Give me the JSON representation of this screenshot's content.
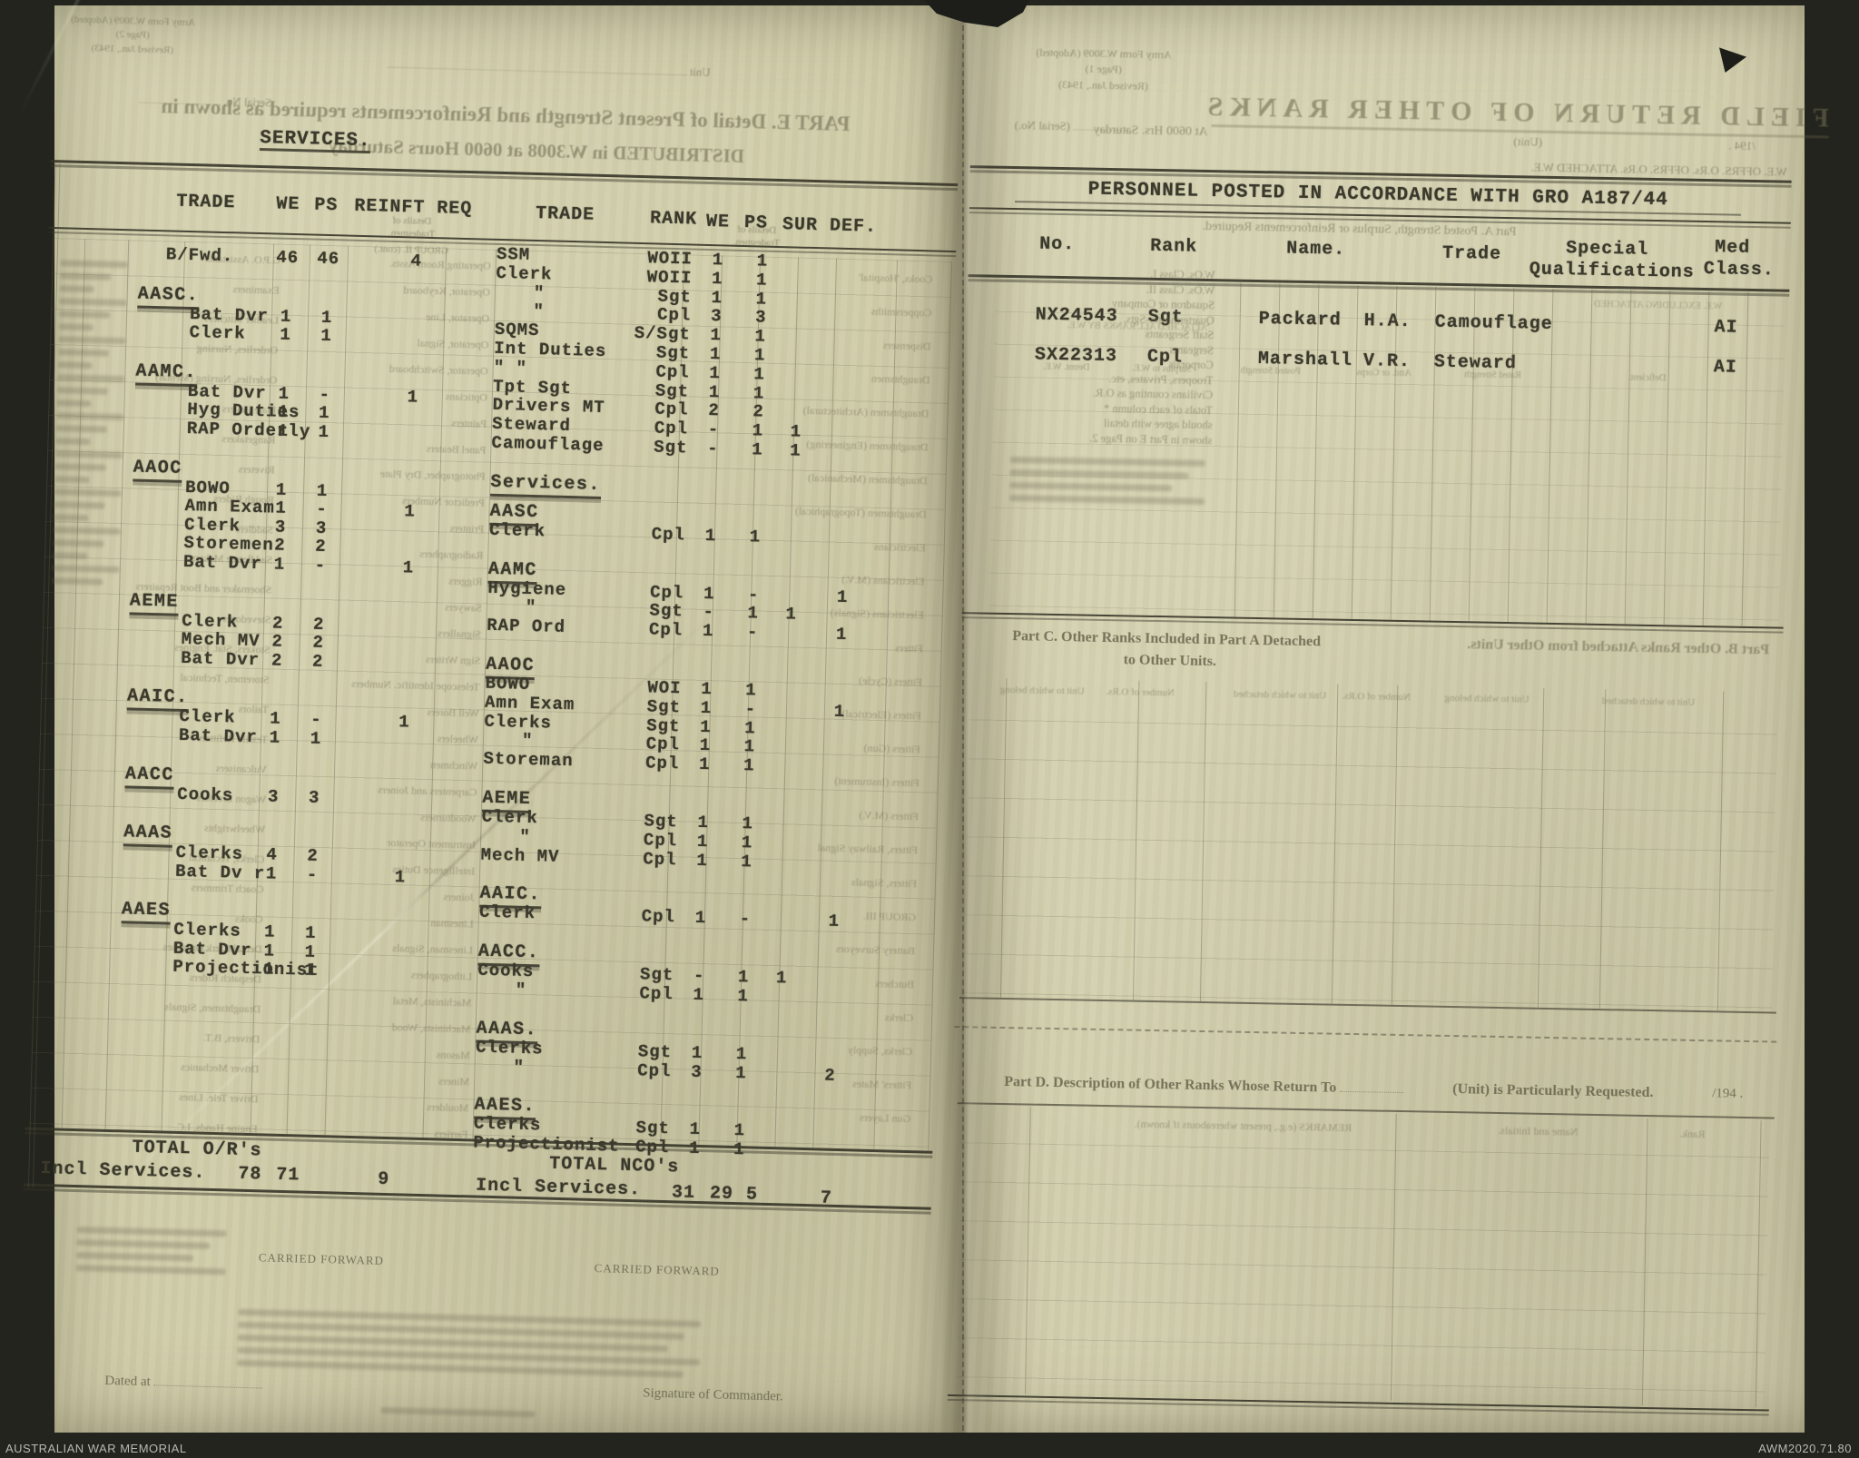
{
  "archive": {
    "memorial": "AUSTRALIAN WAR MEMORIAL",
    "accession": "AWM2020.71.80"
  },
  "left_page": {
    "typed": {
      "services_heading": "SERVICES.",
      "headers": {
        "trade": "TRADE",
        "we": "WE",
        "ps": "PS",
        "reinf": "REINFT REQ",
        "trade2": "TRADE",
        "rank": "RANK",
        "we2": "WE",
        "ps2": "PS",
        "surdef": "SUR DEF."
      },
      "or_return": {
        "bfwd": {
          "trade": "B/Fwd.",
          "we": "46",
          "ps": "46",
          "reinf": "4"
        },
        "groups": [
          {
            "corps": "AASC.",
            "rows": [
              {
                "trade": "Bat Dvr",
                "we": "1",
                "ps": "1"
              },
              {
                "trade": "Clerk",
                "we": "1",
                "ps": "1"
              }
            ]
          },
          {
            "corps": "AAMC.",
            "rows": [
              {
                "trade": "Bat Dvr",
                "we": "1",
                "ps": "-",
                "reinf": "1"
              },
              {
                "trade": "Hyg Duties",
                "we": "1",
                "ps": "1"
              },
              {
                "trade": "RAP Orderly",
                "we": "1",
                "ps": "1"
              }
            ]
          },
          {
            "corps": "AAOC",
            "rows": [
              {
                "trade": "BOWO",
                "we": "1",
                "ps": "1"
              },
              {
                "trade": "Amn Exam",
                "we": "1",
                "ps": "-",
                "reinf": "1"
              },
              {
                "trade": "Clerk",
                "we": "3",
                "ps": "3"
              },
              {
                "trade": "Storemen",
                "we": "2",
                "ps": "2"
              },
              {
                "trade": "Bat Dvr",
                "we": "1",
                "ps": "-",
                "reinf": "1"
              }
            ]
          },
          {
            "corps": "AEME",
            "rows": [
              {
                "trade": "Clerk",
                "we": "2",
                "ps": "2"
              },
              {
                "trade": "Mech MV",
                "we": "2",
                "ps": "2"
              },
              {
                "trade": "Bat Dvr",
                "we": "2",
                "ps": "2"
              }
            ]
          },
          {
            "corps": "AAIC.",
            "rows": [
              {
                "trade": "Clerk",
                "we": "1",
                "ps": "-",
                "reinf": "1"
              },
              {
                "trade": "Bat Dvr",
                "we": "1",
                "ps": "1"
              }
            ]
          },
          {
            "corps": "AACC",
            "rows": [
              {
                "trade": "Cooks",
                "we": "3",
                "ps": "3"
              }
            ]
          },
          {
            "corps": "AAAS",
            "rows": [
              {
                "trade": "Clerks",
                "we": "4",
                "ps": "2"
              },
              {
                "trade": "Bat Dv r",
                "we": "1",
                "ps": "-",
                "reinf": "1"
              }
            ]
          },
          {
            "corps": "AAES",
            "rows": [
              {
                "trade": "Clerks",
                "we": "1",
                "ps": "1"
              },
              {
                "trade": "Bat Dvr",
                "we": "1",
                "ps": "1"
              },
              {
                "trade": "Projectionist",
                "we": "1",
                "ps": "1"
              }
            ]
          }
        ],
        "total": {
          "line1": "TOTAL O/R's",
          "line2": "Incl Services.",
          "we": "78",
          "ps": "71",
          "reinf": "9"
        }
      },
      "nco_return": {
        "lead_rows": [
          {
            "trade": "SSM",
            "rank": "WOII",
            "we": "1",
            "ps": "1"
          },
          {
            "trade": "Clerk",
            "rank": "WOII",
            "we": "1",
            "ps": "1"
          },
          {
            "trade": "\"",
            "rank": "Sgt",
            "we": "1",
            "ps": "1"
          },
          {
            "trade": "\"",
            "rank": "Cpl",
            "we": "3",
            "ps": "3"
          },
          {
            "trade": "SQMS",
            "rank": "S/Sgt",
            "we": "1",
            "ps": "1"
          },
          {
            "trade": "Int Duties",
            "rank": "Sgt",
            "we": "1",
            "ps": "1"
          },
          {
            "trade": "\"  \"",
            "rank": "Cpl",
            "we": "1",
            "ps": "1"
          },
          {
            "trade": "Tpt Sgt",
            "rank": "Sgt",
            "we": "1",
            "ps": "1"
          },
          {
            "trade": "Drivers MT",
            "rank": "Cpl",
            "we": "2",
            "ps": "2"
          },
          {
            "trade": "Steward",
            "rank": "Cpl",
            "we": "-",
            "ps": "1",
            "sur": "1"
          },
          {
            "trade": "Camouflage",
            "rank": "Sgt",
            "we": "-",
            "ps": "1",
            "sur": "1"
          }
        ],
        "services_heading": "Services.",
        "groups": [
          {
            "corps": "AASC",
            "rows": [
              {
                "trade": "Clerk",
                "rank": "Cpl",
                "we": "1",
                "ps": "1"
              }
            ]
          },
          {
            "corps": "AAMC",
            "rows": [
              {
                "trade": "Hygiene",
                "rank": "Cpl",
                "we": "1",
                "ps": "-",
                "def": "1"
              },
              {
                "trade": "\"",
                "rank": "Sgt",
                "we": "-",
                "ps": "1",
                "sur": "1"
              },
              {
                "trade": "RAP Ord",
                "rank": "Cpl",
                "we": "1",
                "ps": "-",
                "def": "1"
              }
            ]
          },
          {
            "corps": "AAOC",
            "rows": [
              {
                "trade": "BOWO",
                "rank": "WOI",
                "we": "1",
                "ps": "1"
              },
              {
                "trade": "Amn Exam",
                "rank": "Sgt",
                "we": "1",
                "ps": "-",
                "def": "1"
              },
              {
                "trade": "Clerks",
                "rank": "Sgt",
                "we": "1",
                "ps": "1"
              },
              {
                "trade": "\"",
                "rank": "Cpl",
                "we": "1",
                "ps": "1"
              },
              {
                "trade": "Storeman",
                "rank": "Cpl",
                "we": "1",
                "ps": "1"
              }
            ]
          },
          {
            "corps": "AEME",
            "rows": [
              {
                "trade": "Clerk",
                "rank": "Sgt",
                "we": "1",
                "ps": "1"
              },
              {
                "trade": "\"",
                "rank": "Cpl",
                "we": "1",
                "ps": "1"
              },
              {
                "trade": "Mech MV",
                "rank": "Cpl",
                "we": "1",
                "ps": "1"
              }
            ]
          },
          {
            "corps": "AAIC.",
            "rows": [
              {
                "trade": "Clerk",
                "rank": "Cpl",
                "we": "1",
                "ps": "-",
                "def": "1"
              }
            ]
          },
          {
            "corps": "AACC.",
            "rows": [
              {
                "trade": "Cooks",
                "rank": "Sgt",
                "we": "-",
                "ps": "1",
                "sur": "1"
              },
              {
                "trade": "\"",
                "rank": "Cpl",
                "we": "1",
                "ps": "1"
              }
            ]
          },
          {
            "corps": "AAAS.",
            "rows": [
              {
                "trade": "Clerks",
                "rank": "Sgt",
                "we": "1",
                "ps": "1"
              },
              {
                "trade": "\"",
                "rank": "Cpl",
                "we": "3",
                "ps": "1",
                "def": "2"
              }
            ]
          },
          {
            "corps": "AAES.",
            "rows": [
              {
                "trade": "Clerks",
                "rank": "Sgt",
                "we": "1",
                "ps": "1"
              },
              {
                "trade": "Projectionist",
                "rank": "Cpl",
                "we": "1",
                "ps": "1"
              }
            ]
          }
        ],
        "total": {
          "line1": "TOTAL NCO's",
          "line2": "Incl Services.",
          "we": "31",
          "ps": "29",
          "sur": "5",
          "def": "7"
        }
      }
    },
    "printed": {
      "form_stamp": [
        "Army Form W.3009 (Adopted)",
        "(Page 2)",
        "(Revised Jan., 1943)"
      ],
      "unit_label": "Unit",
      "serial_label": "Serial No.",
      "heading1": "PART E.  Detail of Present Strength and Reinforcements required as shown in",
      "heading2": "DISTRIBUTED in W.3008 at 0600 Hours Saturday",
      "details_note": [
        "Details of",
        "Tradesmen.",
        "GROUP II. (cont.)"
      ],
      "carried_forward": "CARRIED FORWARD",
      "dated_label": "Dated at",
      "signature_label": "Signature of Commander.",
      "trade_list_a": [
        "G.P.O. Assistants",
        "Examiners",
        "Leather Stitchers",
        "Orderlies, Nursing",
        "Orderlies, Nursing (Mental)",
        "Plate Layers",
        "Rangetakers",
        "Riveters",
        "Rough Riders",
        "Saddlers",
        "Saddletree Makers",
        "Shoemaker and Boot Repairers",
        "Stevedores",
        "Stokers, Stat. Engines",
        "Storemen, Technical",
        "Tailors",
        "Textile Refitters",
        "Vulcanisers",
        "Wagon Erectors",
        "Wheelwrights",
        "Clerks, Technical",
        "Coach Trimmers",
        "Cooks",
        "Dental Clerk Orderlies",
        "Despatch Riders",
        "Draughtsmen, Signals",
        "Drivers, B.T.",
        "Driver Mechanics",
        "Driver Tele. Lines",
        "Engine Hands, I.C."
      ],
      "trade_list_b": [
        "Operating Room Assts.",
        "Operator, Keyboard",
        "Operator, Line",
        "Operator, Signal",
        "Operator, Switchboard",
        "Opticians",
        "Painters",
        "Panel Beaters",
        "Photographer, Dry Plate",
        "Predictor Numbers",
        "Printers",
        "Radiographers",
        "Riggers",
        "Sawyers",
        "Signallers",
        "Sign Writers",
        "Telescope Identific. Numbers",
        "Well Borers",
        "Wheelers",
        "Winchmen",
        "Carpenters and Joiners",
        "Woodturners",
        "Instrument Operator",
        "Intelligence Duties",
        "Joiners",
        "Linesman",
        "Linesman, Signals",
        "Lithographers",
        "Machinists, Metal",
        "Machinists, Wood",
        "Masons",
        "Miners",
        "Moulders",
        "Farriers"
      ],
      "trade_list_c": [
        "Cooks, 'Hospital'",
        "Coppersmiths",
        "Dispensers",
        "Draughtsmen",
        "Draughtsmen (Architectural)",
        "Draughtsmen (Engineering)",
        "Draughtsmen (Mechanical)",
        "Draughtsmen (Topographical)",
        "Electricians",
        "Electricians (M.V.)",
        "Electricians (Signals)",
        "Fitters",
        "Fitters (Cycle)",
        "Fitters (Electrical)",
        "Fitters (Gun)",
        "Fitters (Instrument)",
        "Fitters (M.V.)",
        "Fitters, Railway Signal",
        "Fitters, Signals",
        "GROUP III.",
        "Battery Surveyors",
        "Butchers",
        "Clerks",
        "Clerks, Supply",
        "Fitters' Mates",
        "Gun Layers"
      ]
    }
  },
  "right_page": {
    "typed": {
      "heading": "PERSONNEL POSTED IN ACCORDANCE WITH GRO A187/44",
      "columns": {
        "no": "No.",
        "rank": "Rank",
        "name": "Name.",
        "trade": "Trade",
        "special1": "Special",
        "special2": "Qualifications",
        "med1": "Med",
        "med2": "Class."
      },
      "rows": [
        {
          "no": "NX24543",
          "rank": "Sgt",
          "surname": "Packard",
          "initials": "H.A.",
          "trade": "Camouflage",
          "special": "",
          "med": "AI"
        },
        {
          "no": "SX22313",
          "rank": "Cpl",
          "surname": "Marshall",
          "initials": "V.R.",
          "trade": "Steward",
          "special": "",
          "med": "AI"
        }
      ]
    },
    "printed": {
      "form_stamp": [
        "Army Form W.3009 (Adopted)",
        "(Page 1)",
        "(Revised Jan., 1943)"
      ],
      "title": "FIELD RETURN OF OTHER RANKS",
      "serial_label": "(Serial No.)",
      "datetime_label": "At 0600 Hrs. Saturday",
      "year_label": "/194 .",
      "unit_label": "(Unit)",
      "we_line": "W.E.        OFFRS.        O.Rs.        OFFRS.        O.Rs.   ATTACHED   W.E.",
      "part_a": "Part A.  Posted Strength, Surplus or Reinforcements Required.",
      "micro_labels": [
        "ATTACHED ALL RANKS BY W.E.",
        "W.E. EXCLUDING ATTACHED"
      ],
      "micro_cols": [
        "Detmt. W.E.",
        "Surplus to W.E.",
        "Posted Strength",
        "Attd. or Corps",
        "Rated Strength",
        "Deficient."
      ],
      "rank_labels": [
        "W.Os. Class I.",
        "W.Os. Class II.",
        "Squadron or Company",
        "Quartermaster-Sgts.",
        "Staff Sergeants",
        "Sergeants",
        "Corporals",
        "Troopers, Privates, etc.",
        "Civilians counting as O.R.",
        "Totals of each column *",
        "should agree with detail",
        "shown in Part E on Page 2."
      ],
      "part_b": "Part B.  Other Ranks Attached from Other Units.",
      "part_c1": "Part C.  Other Ranks Included in Part A Detached",
      "part_c2": "to Other Units.",
      "unit_cols": [
        "Unit to which belong",
        "Number of O.Rs.",
        "Unit to which detached",
        "Number of O.Rs.",
        "Unit to which belong",
        "Unit to which detached"
      ],
      "part_d": "Part D.  Description of Other Ranks Whose Return To",
      "part_d_unit": "(Unit) is Particularly Requested.",
      "part_d_year": "/194 .",
      "part_d_cols": [
        "REMARKS (e.g., present whereabouts if known).",
        "Name and Initials.",
        "Rank."
      ]
    }
  }
}
